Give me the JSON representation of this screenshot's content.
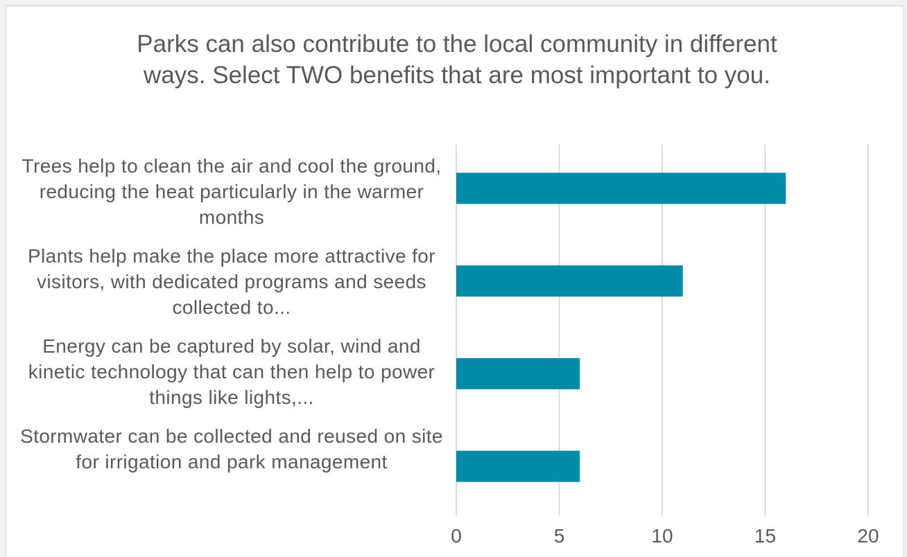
{
  "chart_data": {
    "type": "bar",
    "orientation": "horizontal",
    "title": "Parks can also contribute to the local community in different ways. Select TWO benefits that are most important to you.",
    "categories": [
      "Trees help to clean the air and cool the ground, reducing the heat particularly in the warmer months",
      "Plants help make the place more attractive for visitors, with dedicated programs and seeds collected to...",
      "Energy can be captured by solar, wind and kinetic technology that can then help to power things like lights,...",
      "Stormwater can be collected and reused on site for irrigation and park management"
    ],
    "values": [
      16,
      11,
      6,
      6
    ],
    "xlim": [
      0,
      20
    ],
    "xticks": [
      "0",
      "5",
      "10",
      "15",
      "20"
    ],
    "grid": true,
    "bar_color": "#008ba8",
    "grid_color": "#d9d9d9"
  }
}
